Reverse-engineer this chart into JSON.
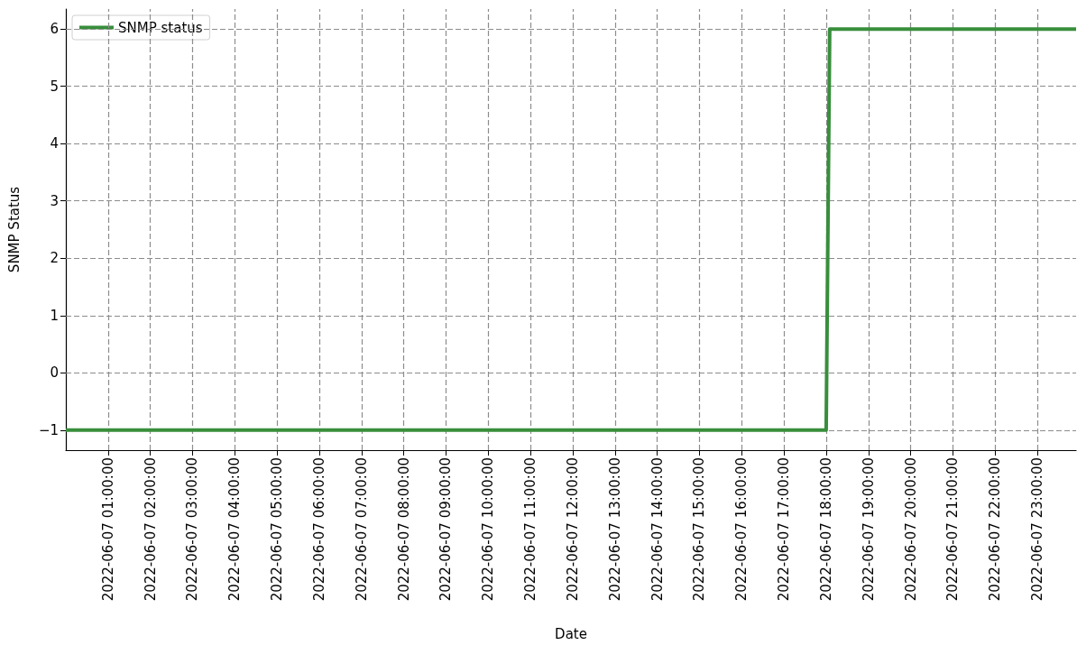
{
  "chart_data": {
    "type": "line",
    "xlabel": "Date",
    "ylabel": "SNMP Status",
    "x": [
      "2022-06-07T00:00",
      "2022-06-07T18:00",
      "2022-06-07T18:05",
      "2022-06-07T23:55"
    ],
    "series": [
      {
        "name": "SNMP status",
        "color": "#388e3c",
        "values": [
          -1,
          -1,
          6,
          6
        ]
      }
    ],
    "xlim": [
      "2022-06-07T00:00",
      "2022-06-07T23:55"
    ],
    "xticks": [
      {
        "value": "2022-06-07T01:00",
        "label": "2022-06-07 01:00:00"
      },
      {
        "value": "2022-06-07T02:00",
        "label": "2022-06-07 02:00:00"
      },
      {
        "value": "2022-06-07T03:00",
        "label": "2022-06-07 03:00:00"
      },
      {
        "value": "2022-06-07T04:00",
        "label": "2022-06-07 04:00:00"
      },
      {
        "value": "2022-06-07T05:00",
        "label": "2022-06-07 05:00:00"
      },
      {
        "value": "2022-06-07T06:00",
        "label": "2022-06-07 06:00:00"
      },
      {
        "value": "2022-06-07T07:00",
        "label": "2022-06-07 07:00:00"
      },
      {
        "value": "2022-06-07T08:00",
        "label": "2022-06-07 08:00:00"
      },
      {
        "value": "2022-06-07T09:00",
        "label": "2022-06-07 09:00:00"
      },
      {
        "value": "2022-06-07T10:00",
        "label": "2022-06-07 10:00:00"
      },
      {
        "value": "2022-06-07T11:00",
        "label": "2022-06-07 11:00:00"
      },
      {
        "value": "2022-06-07T12:00",
        "label": "2022-06-07 12:00:00"
      },
      {
        "value": "2022-06-07T13:00",
        "label": "2022-06-07 13:00:00"
      },
      {
        "value": "2022-06-07T14:00",
        "label": "2022-06-07 14:00:00"
      },
      {
        "value": "2022-06-07T15:00",
        "label": "2022-06-07 15:00:00"
      },
      {
        "value": "2022-06-07T16:00",
        "label": "2022-06-07 16:00:00"
      },
      {
        "value": "2022-06-07T17:00",
        "label": "2022-06-07 17:00:00"
      },
      {
        "value": "2022-06-07T18:00",
        "label": "2022-06-07 18:00:00"
      },
      {
        "value": "2022-06-07T19:00",
        "label": "2022-06-07 19:00:00"
      },
      {
        "value": "2022-06-07T20:00",
        "label": "2022-06-07 20:00:00"
      },
      {
        "value": "2022-06-07T21:00",
        "label": "2022-06-07 21:00:00"
      },
      {
        "value": "2022-06-07T22:00",
        "label": "2022-06-07 22:00:00"
      },
      {
        "value": "2022-06-07T23:00",
        "label": "2022-06-07 23:00:00"
      }
    ],
    "ylim": [
      -1.35,
      6.35
    ],
    "yticks": [
      -1,
      0,
      1,
      2,
      3,
      4,
      5,
      6
    ],
    "grid": true,
    "legend": "top left",
    "marker": "none",
    "line_style": "solid"
  }
}
